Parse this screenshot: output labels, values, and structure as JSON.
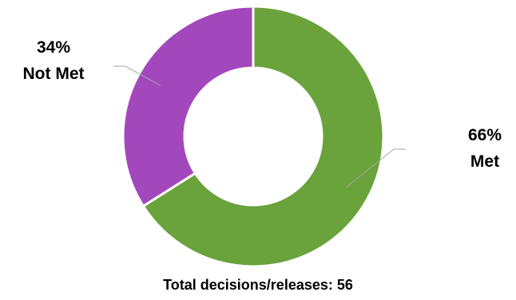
{
  "chart_data": {
    "type": "pie",
    "style": "donut",
    "categories": [
      "Met",
      "Not Met"
    ],
    "values": [
      66,
      34
    ],
    "unit": "%",
    "colors": {
      "Met": "#6aa23b",
      "Not Met": "#a347bd"
    },
    "data_labels": {
      "Met": {
        "percent": "66%",
        "name": "Met"
      },
      "Not Met": {
        "percent": "34%",
        "name": "Not Met"
      }
    },
    "legend": "none",
    "grid": false
  },
  "footer": {
    "text": "Total decisions/releases: 56"
  }
}
